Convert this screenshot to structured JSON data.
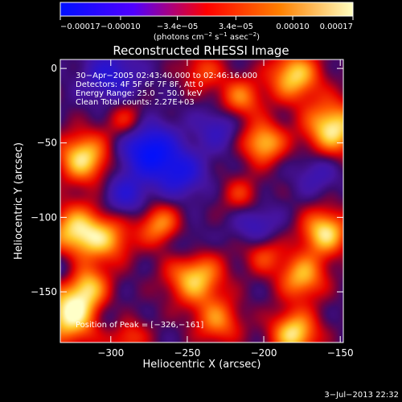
{
  "chart_data": {
    "type": "heatmap",
    "title": "Reconstructed RHESSI Image",
    "xlabel": "Heliocentric X (arcsec)",
    "ylabel": "Heliocentric Y (arcsec)",
    "xlim": [
      -333,
      -148
    ],
    "ylim": [
      -184,
      6
    ],
    "xticks": [
      -300,
      -250,
      -200,
      -150
    ],
    "yticks": [
      0,
      -50,
      -100,
      -150
    ],
    "xtick_labels": [
      "−300",
      "−250",
      "−200",
      "−150"
    ],
    "ytick_labels": [
      "0",
      "−50",
      "−100",
      "−150"
    ],
    "colorbar": {
      "range": [
        -0.00017,
        0.00017
      ],
      "ticks": [
        -0.00017,
        -0.0001,
        -3.4e-05,
        3.4e-05,
        0.0001,
        0.00017
      ],
      "tick_labels": [
        "−0.00017",
        "−0.00010",
        "−3.4e−05",
        "3.4e−05",
        "0.00010",
        "0.00017"
      ],
      "units_prefix": "(photons cm",
      "units_exp1": "−2",
      "units_mid": " s",
      "units_exp2": "−1",
      "units_mid2": " asec",
      "units_exp3": "−2",
      "units_suffix": ")",
      "colors": [
        "#0010ff",
        "#5000ff",
        "#ff0000",
        "#ff8000",
        "#ffffc0"
      ]
    },
    "annotations": [
      "30−Apr−2005 02:43:40.000 to 02:46:16.000",
      "Detectors: 4F 5F 6F 7F 8F, Att 0",
      "Energy Range: 25.0 − 50.0 keV",
      "Clean     Total counts: 2.27E+03"
    ],
    "peak_label": "Position of Peak = [−326,−161]",
    "peak": {
      "x": -326,
      "y": -161
    },
    "sources": [
      {
        "x": -326,
        "y": -165,
        "v": 1.0,
        "s": 14
      },
      {
        "x": -318,
        "y": -60,
        "v": 0.9,
        "s": 12
      },
      {
        "x": -322,
        "y": -110,
        "v": 0.9,
        "s": 13
      },
      {
        "x": -300,
        "y": -115,
        "v": 0.55,
        "s": 11
      },
      {
        "x": -315,
        "y": -145,
        "v": 0.6,
        "s": 10
      },
      {
        "x": -180,
        "y": -5,
        "v": 0.85,
        "s": 12
      },
      {
        "x": -155,
        "y": -40,
        "v": 0.95,
        "s": 13
      },
      {
        "x": -200,
        "y": -50,
        "v": 0.8,
        "s": 10
      },
      {
        "x": -215,
        "y": -20,
        "v": 0.6,
        "s": 10
      },
      {
        "x": -160,
        "y": -110,
        "v": 0.9,
        "s": 11
      },
      {
        "x": -175,
        "y": -140,
        "v": 0.75,
        "s": 11
      },
      {
        "x": -245,
        "y": -140,
        "v": 0.85,
        "s": 13
      },
      {
        "x": -230,
        "y": -170,
        "v": 0.6,
        "s": 11
      },
      {
        "x": -180,
        "y": -178,
        "v": 0.9,
        "s": 11
      },
      {
        "x": -268,
        "y": -105,
        "v": 0.65,
        "s": 10
      },
      {
        "x": -215,
        "y": -85,
        "v": 0.4,
        "s": 9
      },
      {
        "x": -290,
        "y": -35,
        "v": 0.4,
        "s": 9
      },
      {
        "x": -240,
        "y": -2,
        "v": 0.45,
        "s": 10
      },
      {
        "x": -290,
        "y": -180,
        "v": 0.5,
        "s": 10
      },
      {
        "x": -200,
        "y": -125,
        "v": 0.45,
        "s": 9
      },
      {
        "x": -275,
        "y": -55,
        "v": -0.9,
        "s": 12
      },
      {
        "x": -300,
        "y": -5,
        "v": -0.5,
        "s": 12
      },
      {
        "x": -255,
        "y": -70,
        "v": -0.6,
        "s": 11
      },
      {
        "x": -290,
        "y": -85,
        "v": -0.45,
        "s": 10
      },
      {
        "x": -230,
        "y": -40,
        "v": -0.35,
        "s": 10
      },
      {
        "x": -205,
        "y": -105,
        "v": -0.35,
        "s": 10
      },
      {
        "x": -330,
        "y": -135,
        "v": -0.3,
        "s": 9
      },
      {
        "x": -300,
        "y": -170,
        "v": -0.3,
        "s": 9
      },
      {
        "x": -165,
        "y": -70,
        "v": -0.3,
        "s": 10
      },
      {
        "x": -250,
        "y": -120,
        "v": -0.3,
        "s": 9
      }
    ]
  },
  "footer_date": "3−Jul−2013 22:32"
}
